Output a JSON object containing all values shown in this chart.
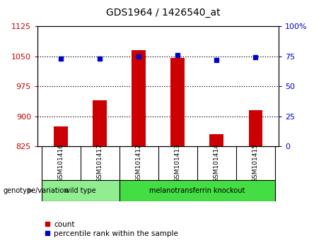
{
  "title": "GDS1964 / 1426540_at",
  "samples": [
    "GSM101416",
    "GSM101417",
    "GSM101412",
    "GSM101413",
    "GSM101414",
    "GSM101415"
  ],
  "counts": [
    875,
    940,
    1065,
    1045,
    855,
    915
  ],
  "percentiles": [
    73,
    73,
    75,
    76,
    72,
    74
  ],
  "ylim_left": [
    825,
    1125
  ],
  "ylim_right": [
    0,
    100
  ],
  "yticks_left": [
    825,
    900,
    975,
    1050,
    1125
  ],
  "yticks_right": [
    0,
    25,
    50,
    75,
    100
  ],
  "bar_color": "#cc0000",
  "dot_color": "#0000cc",
  "groups": [
    {
      "label": "wild type",
      "indices": [
        0,
        1
      ],
      "color": "#90ee90"
    },
    {
      "label": "melanotransferrin knockout",
      "indices": [
        2,
        3,
        4,
        5
      ],
      "color": "#44dd44"
    }
  ],
  "group_label": "genotype/variation",
  "legend_count": "count",
  "legend_percentile": "percentile rank within the sample",
  "bg_color": "#c8c8c8",
  "plot_bg": "#ffffff"
}
